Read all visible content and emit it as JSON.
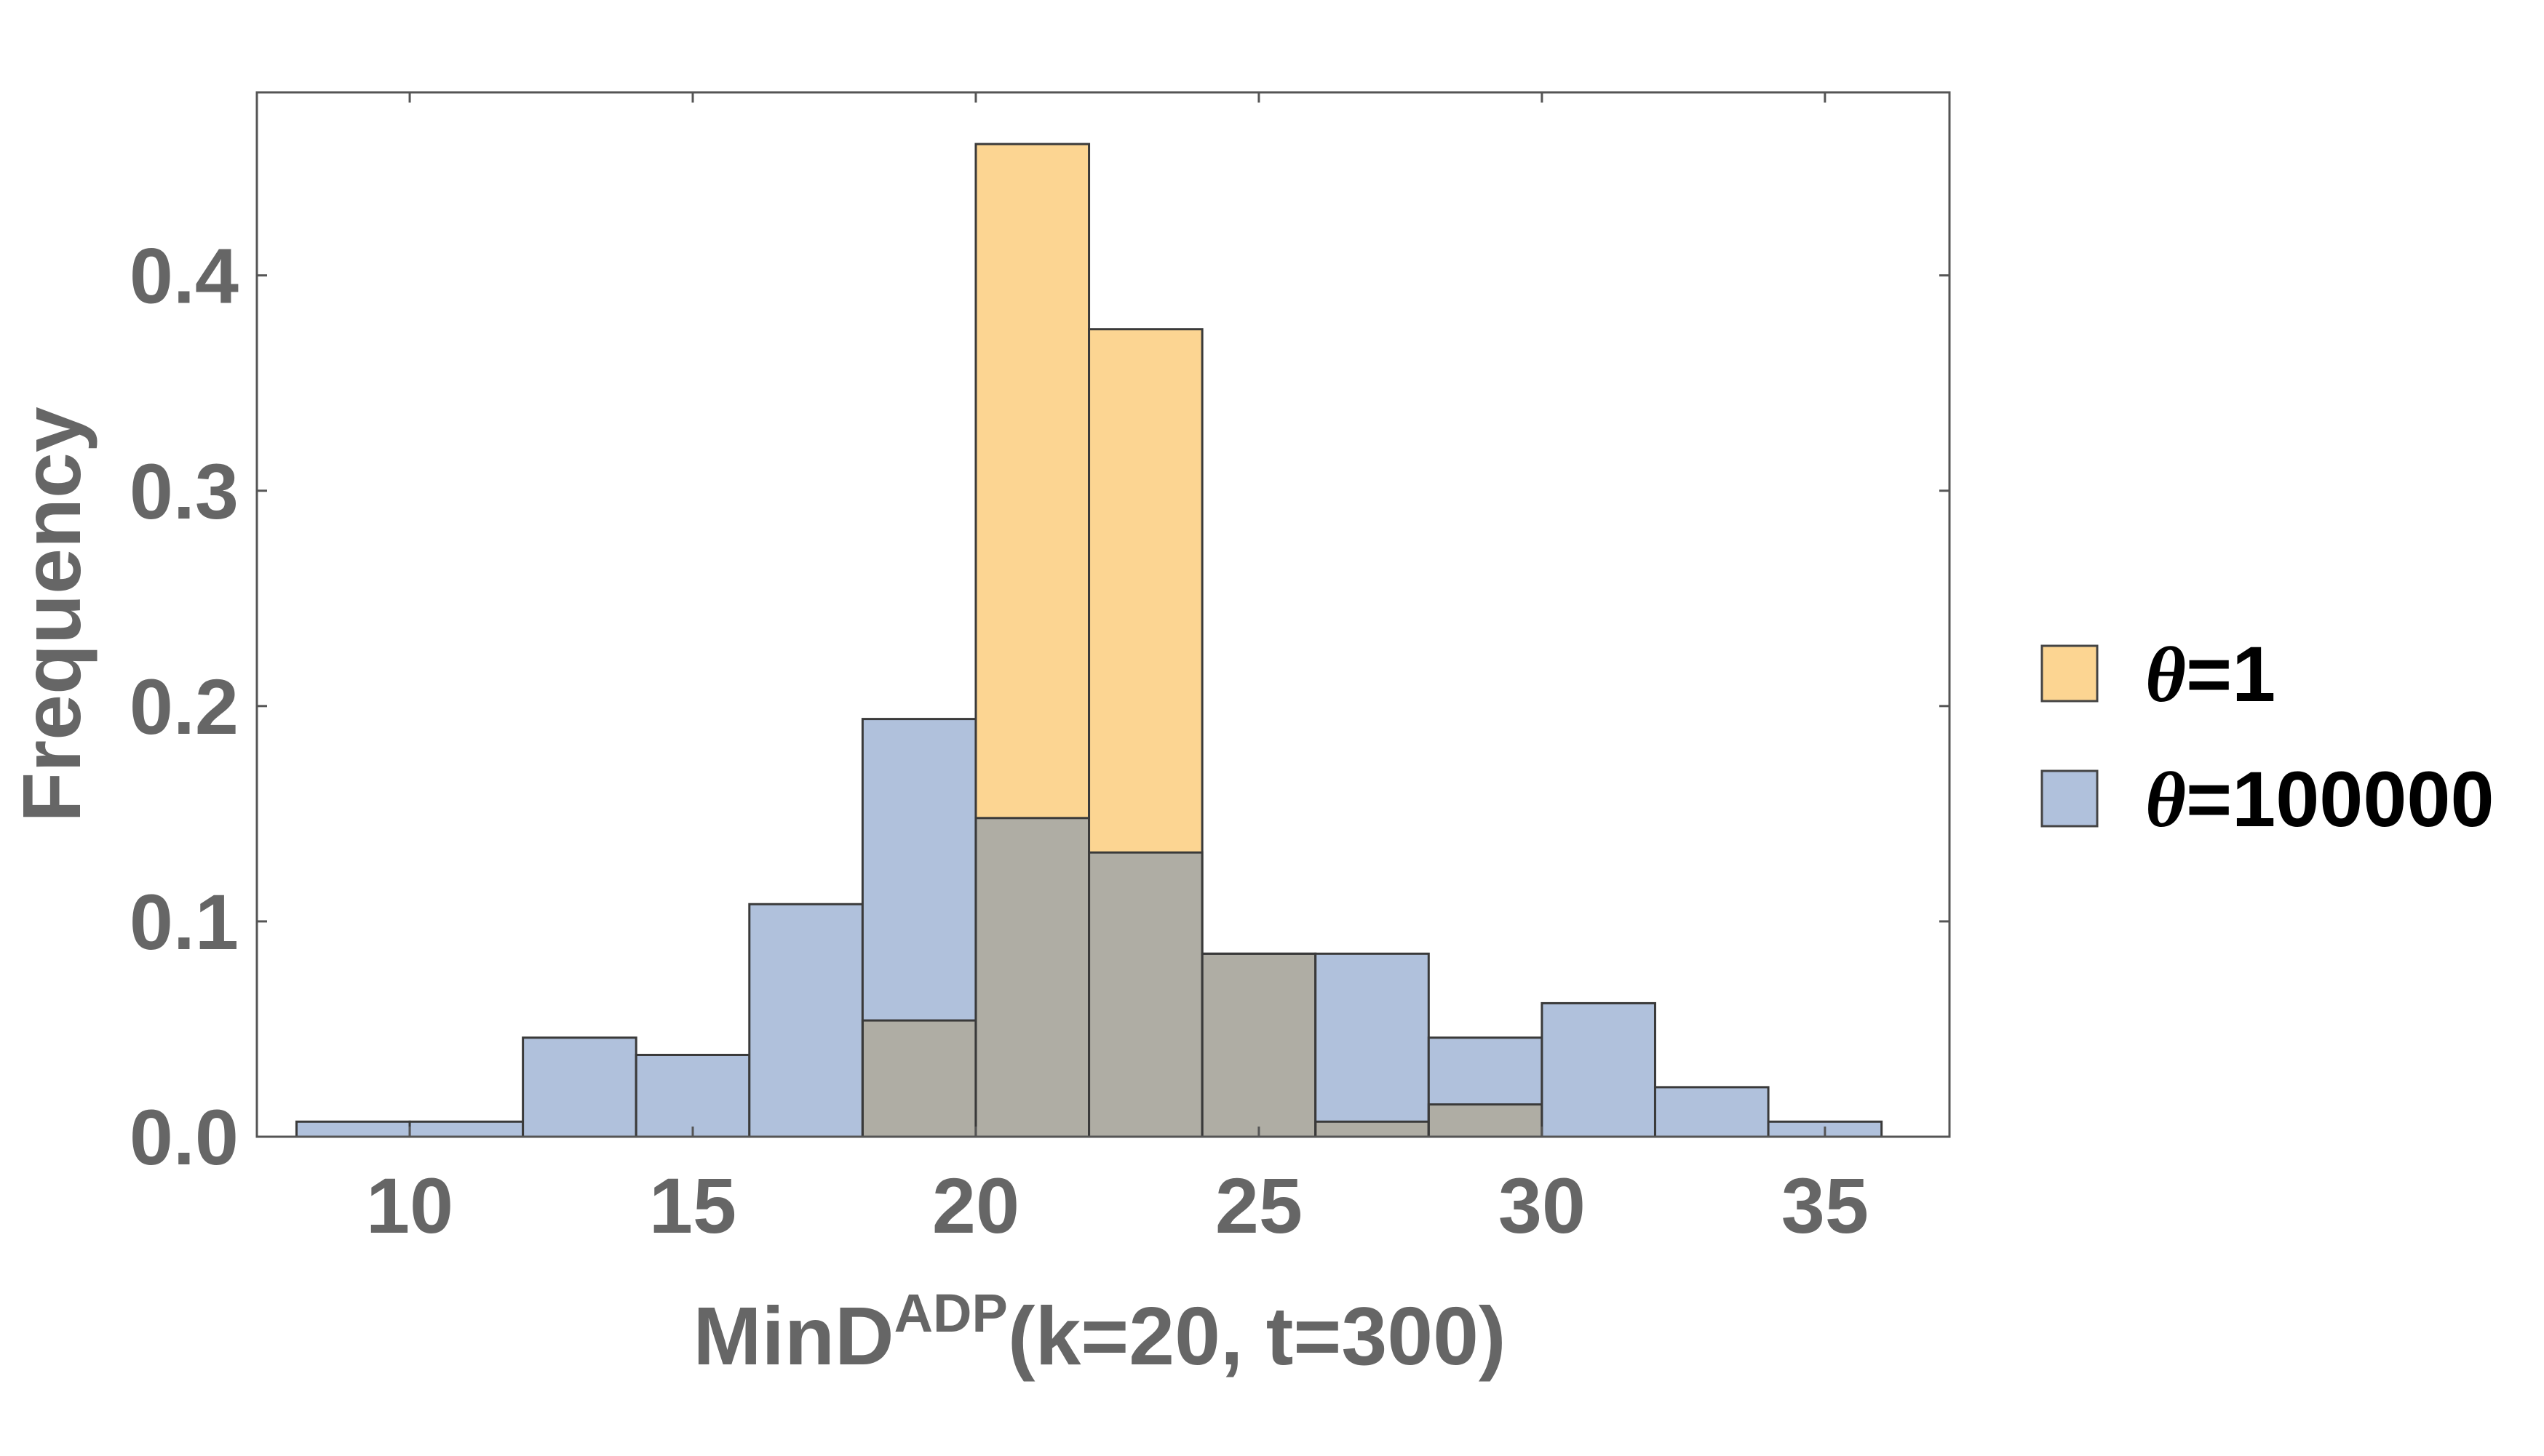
{
  "chart_data": {
    "type": "bar",
    "subtype": "overlaid-histogram",
    "bin_edges": [
      8,
      10,
      12,
      14,
      16,
      18,
      20,
      22,
      24,
      26,
      28,
      30,
      32,
      34,
      36
    ],
    "series": [
      {
        "name": "θ=1",
        "legend_symbol": "θ",
        "legend_value": "=1",
        "color": "#fcd592",
        "values": [
          0,
          0,
          0,
          0,
          0,
          0.054,
          0.461,
          0.375,
          0.085,
          0.007,
          0.015,
          0,
          0,
          0
        ]
      },
      {
        "name": "θ=100000",
        "legend_symbol": "θ",
        "legend_value": "=100000",
        "color": "#b0c1dc",
        "values": [
          0.007,
          0.007,
          0.046,
          0.038,
          0.108,
          0.194,
          0.148,
          0.132,
          0.085,
          0.085,
          0.046,
          0.062,
          0.023,
          0.007
        ]
      }
    ],
    "overlap_color": "#afada4",
    "edge_color": "#3a3a3a",
    "xlabel": {
      "main": "MinD",
      "superscript": "ADP",
      "suffix": "(k=20, t=300)"
    },
    "ylabel": "Frequency",
    "xlim": [
      7.3,
      37.2
    ],
    "ylim": [
      0,
      0.485
    ],
    "xticks": [
      10,
      15,
      20,
      25,
      30,
      35
    ],
    "xtick_labels": [
      "10",
      "15",
      "20",
      "25",
      "30",
      "35"
    ],
    "yticks": [
      0.0,
      0.1,
      0.2,
      0.3,
      0.4
    ],
    "ytick_labels": [
      "0.0",
      "0.1",
      "0.2",
      "0.3",
      "0.4"
    ],
    "grid": false,
    "legend_position": "right"
  }
}
